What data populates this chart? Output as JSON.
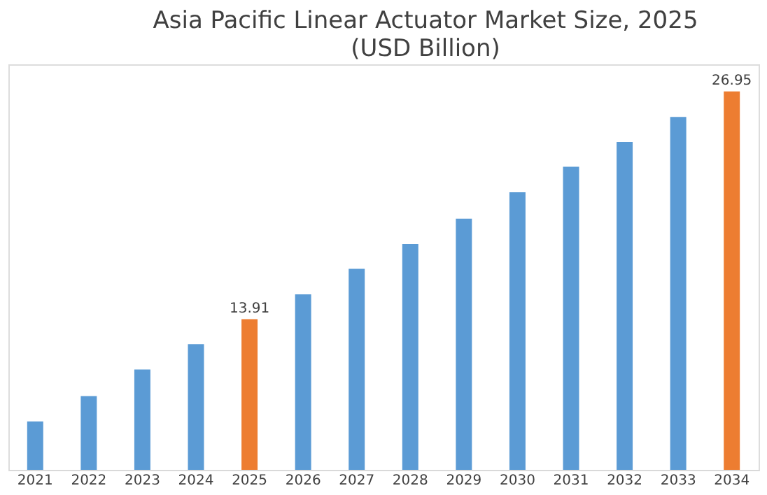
{
  "chart_data": {
    "type": "bar",
    "title": "Asia Pacific Linear Actuator Market Size, 2025",
    "subtitle": "(USD Billion)",
    "categories": [
      "2021",
      "2022",
      "2023",
      "2024",
      "2025",
      "2026",
      "2027",
      "2028",
      "2029",
      "2030",
      "2031",
      "2032",
      "2033",
      "2034"
    ],
    "values": [
      8.06,
      9.51,
      11.03,
      12.48,
      13.91,
      15.33,
      16.79,
      18.22,
      19.67,
      21.18,
      22.64,
      24.06,
      25.49,
      26.95
    ],
    "colors": [
      "#5b9bd5",
      "#5b9bd5",
      "#5b9bd5",
      "#5b9bd5",
      "#ed7d31",
      "#5b9bd5",
      "#5b9bd5",
      "#5b9bd5",
      "#5b9bd5",
      "#5b9bd5",
      "#5b9bd5",
      "#5b9bd5",
      "#5b9bd5",
      "#ed7d31"
    ],
    "value_labels": [
      null,
      null,
      null,
      null,
      "13.91",
      null,
      null,
      null,
      null,
      null,
      null,
      null,
      null,
      "26.95"
    ],
    "ylim": [
      5.29,
      28.5
    ],
    "grid": false
  }
}
